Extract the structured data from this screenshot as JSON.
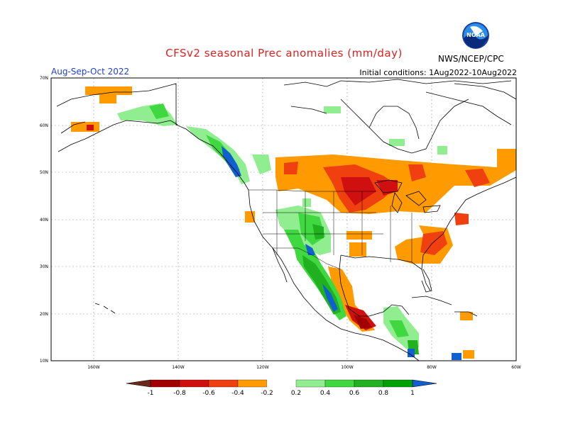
{
  "header": {
    "title": "CFSv2 seasonal Prec anomalies (mm/day)",
    "season": "Aug-Sep-Oct 2022",
    "initial_conditions": "Initial conditions: 1Aug2022-10Aug2022",
    "organization": "NWS/NCEP/CPC",
    "logo_text": "NOAA"
  },
  "axes": {
    "lat_labels": [
      "70N",
      "60N",
      "50N",
      "40N",
      "30N",
      "20N",
      "10N"
    ],
    "lon_labels": [
      "160W",
      "140W",
      "120W",
      "100W",
      "80W",
      "60W"
    ],
    "lat_range": [
      10,
      70
    ],
    "lon_range": [
      -170,
      -60
    ]
  },
  "colorbar": {
    "labels": [
      "-1",
      "-0.8",
      "-0.6",
      "-0.4",
      "-0.2",
      "0.2",
      "0.4",
      "0.6",
      "0.8",
      "1"
    ],
    "colors": [
      "#6b2a1a",
      "#a00000",
      "#d01010",
      "#f04010",
      "#ff9a00",
      "#ffffff",
      "#90ee90",
      "#40d840",
      "#20b020",
      "#00a000",
      "#1060d0"
    ]
  },
  "anomalies": {
    "dry": [
      {
        "region": "southern Alaska",
        "level": -0.2
      },
      {
        "region": "southern Canada / northern Plains",
        "level": -0.6
      },
      {
        "region": "Great Lakes",
        "level": -0.8
      },
      {
        "region": "Mid-Atlantic / Southeast US",
        "level": -0.6
      },
      {
        "region": "southern Mexico",
        "level": -0.8
      },
      {
        "region": "eastern Canada",
        "level": -0.2
      }
    ],
    "wet": [
      {
        "region": "Pacific Northwest coast",
        "level": 1.0
      },
      {
        "region": "western Mexico",
        "level": 1.0
      },
      {
        "region": "Southwest US",
        "level": 0.6
      },
      {
        "region": "Central America",
        "level": 0.4
      },
      {
        "region": "Yukon / northern BC",
        "level": 0.4
      }
    ]
  }
}
